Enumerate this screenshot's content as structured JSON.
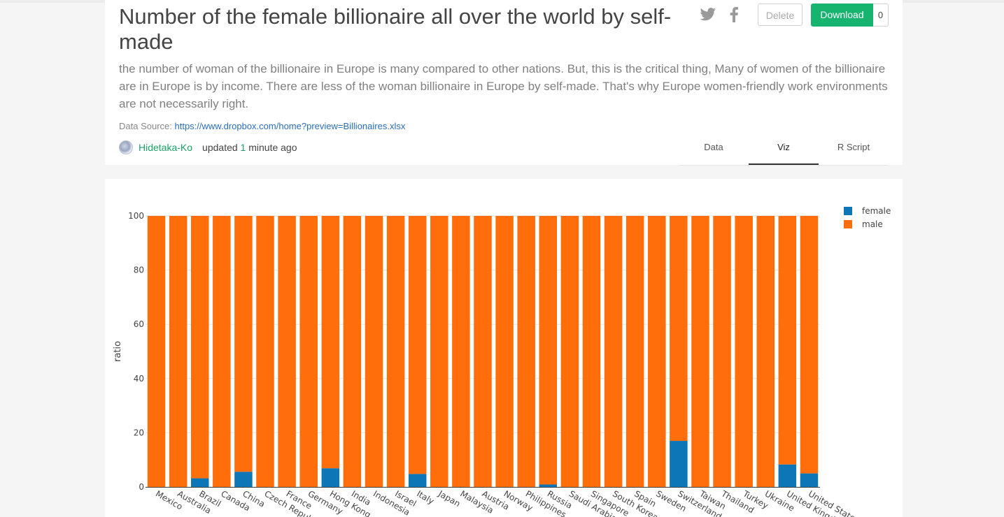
{
  "header": {
    "title": "Number of the female billionaire all over the world by self-made",
    "description": "the number of woman of the billionaire in Europe is many compared to other nations. But, this is the critical thing, Many of women of the billionaire are in Europe is by income. There are less of the woman billionaire in Europe by self-made. That's why Europe women-friendly work environments are not necessarily right.",
    "source_label": "Data Source:",
    "source_url": "https://www.dropbox.com/home?preview=Billionaires.xlsx",
    "author": "Hidetaka-Ko",
    "updated_prefix": "updated",
    "updated_num": "1",
    "updated_suffix": "minute ago",
    "twitter_icon": "twitter-icon",
    "facebook_icon": "facebook-icon",
    "delete_label": "Delete",
    "download_label": "Download",
    "download_count": "0",
    "tabs": [
      "Data",
      "Viz",
      "R Script"
    ],
    "active_tab": "Viz"
  },
  "colors": {
    "female": "#0d76b6",
    "male": "#ff6e0b",
    "accent_green": "#17b470"
  },
  "chart_data": {
    "type": "bar",
    "stacked": true,
    "categories": [
      "Mexico",
      "Australia",
      "Brazil",
      "Canada",
      "China",
      "Czech Republic",
      "France",
      "Germany",
      "Hong Kong",
      "India",
      "Indonesia",
      "Israel",
      "Italy",
      "Japan",
      "Malaysia",
      "Austria",
      "Norway",
      "Philippines",
      "Russia",
      "Saudi Arabia",
      "Singapore",
      "South Korea",
      "Spain",
      "Sweden",
      "Switzerland",
      "Taiwan",
      "Thailand",
      "Turkey",
      "Ukraine",
      "United Kingdom",
      "United States"
    ],
    "series": [
      {
        "name": "female",
        "values": [
          0,
          0,
          3.2,
          0,
          5.6,
          0,
          0,
          0,
          6.9,
          0,
          0,
          0,
          4.8,
          0,
          0,
          0,
          0,
          0,
          0.9,
          0,
          0,
          0,
          0,
          0,
          17,
          0,
          0,
          0,
          0,
          8.3,
          5
        ]
      },
      {
        "name": "male",
        "values": [
          100,
          100,
          96.8,
          100,
          94.4,
          100,
          100,
          100,
          93.1,
          100,
          100,
          100,
          95.2,
          100,
          100,
          100,
          100,
          100,
          99.1,
          100,
          100,
          100,
          100,
          100,
          83,
          100,
          100,
          100,
          100,
          91.7,
          95
        ]
      }
    ],
    "ylabel": "ratio",
    "ylim": [
      0,
      100
    ],
    "yticks": [
      0,
      20,
      40,
      60,
      80,
      100
    ],
    "legend_position": "top-right",
    "grid": true
  }
}
